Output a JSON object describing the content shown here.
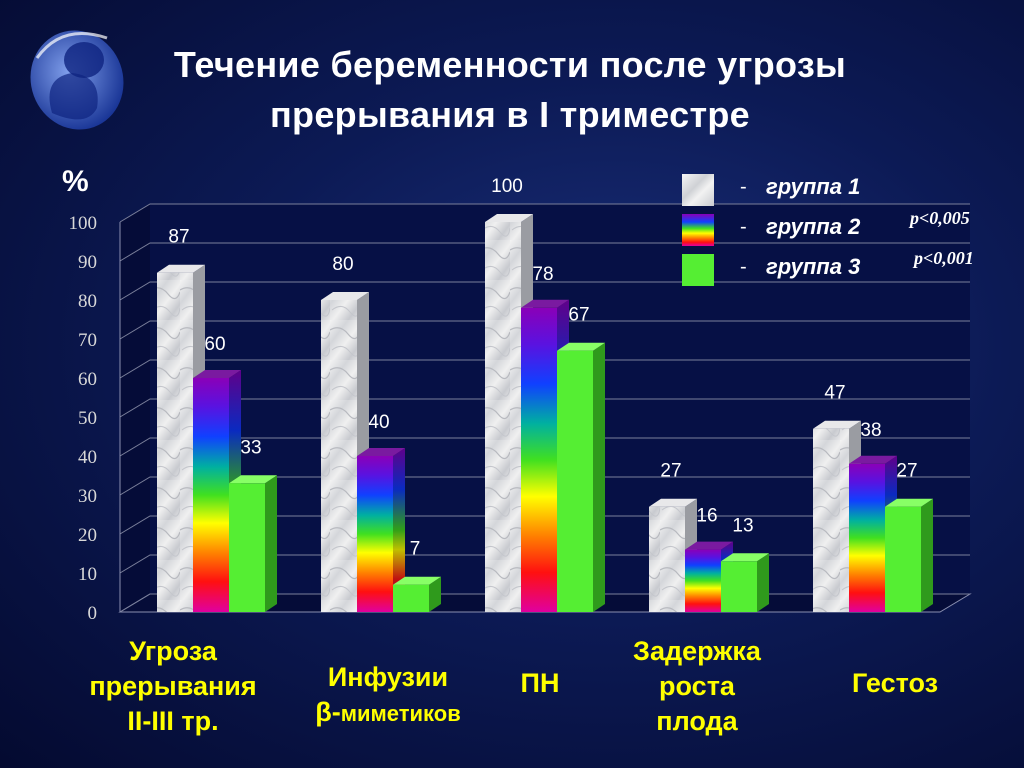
{
  "title_line1": "Течение беременности после угрозы",
  "title_line2": "прерывания в I триместре",
  "colors": {
    "background": "#0c1a55",
    "text": "#ffffff",
    "category": "#ffff00",
    "group3": "#55ee33"
  },
  "chart_data": {
    "type": "bar",
    "ylabel": "%",
    "ylim": [
      0,
      100
    ],
    "yticks": [
      0,
      10,
      20,
      30,
      40,
      50,
      60,
      70,
      80,
      90,
      100
    ],
    "grid": true,
    "legend_position": "top-right",
    "categories": [
      "Угроза прерывания II-III тр.",
      "Инфузии β-миметиков",
      "ПН",
      "Задержка роста плода",
      "Гестоз"
    ],
    "category_lines": [
      [
        "Угроза",
        "прерывания",
        "II-III тр."
      ],
      [
        "Инфузии",
        "β-миметиков"
      ],
      [
        "ПН"
      ],
      [
        "Задержка",
        "роста",
        "плода"
      ],
      [
        "Гестоз"
      ]
    ],
    "series": [
      {
        "name": "группа 1",
        "values": [
          87,
          80,
          100,
          27,
          47
        ]
      },
      {
        "name": "группа 2",
        "values": [
          60,
          40,
          78,
          16,
          38
        ],
        "p_value": "p<0,005"
      },
      {
        "name": "группа 3",
        "values": [
          33,
          7,
          67,
          13,
          27
        ],
        "p_value": "p<0,001"
      }
    ]
  }
}
